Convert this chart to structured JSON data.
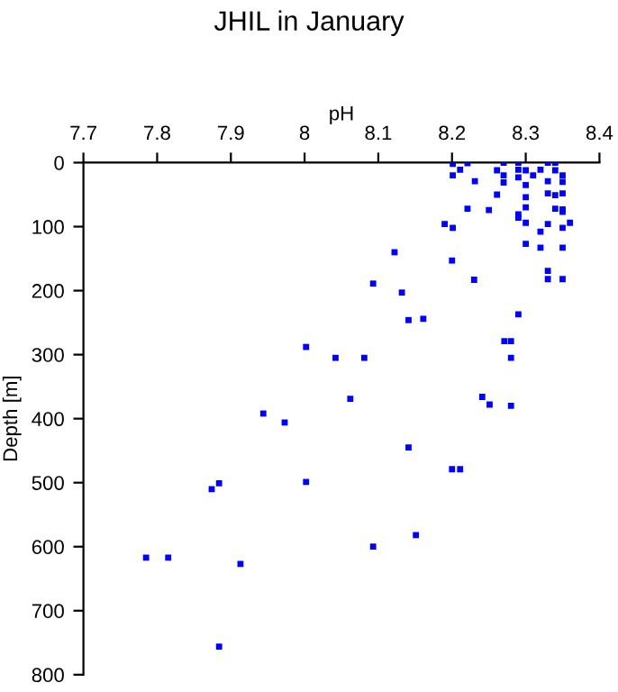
{
  "chart_data": {
    "type": "scatter",
    "title": "JHIL in January",
    "xlabel": "pH",
    "ylabel": "Depth [m]",
    "xlim": [
      7.7,
      8.4
    ],
    "xticks": [
      7.7,
      7.8,
      7.9,
      8,
      8.1,
      8.2,
      8.3,
      8.4
    ],
    "ylim": [
      800,
      0
    ],
    "yticks": [
      0,
      100,
      200,
      300,
      400,
      500,
      600,
      700,
      800
    ],
    "grid": false,
    "marker": "square",
    "series": [
      {
        "color": "#0000ff",
        "x": [
          8.201,
          8.221,
          8.27,
          8.29,
          8.33,
          8.34,
          8.211,
          8.261,
          8.29,
          8.3,
          8.32,
          8.34,
          8.201,
          8.27,
          8.29,
          8.31,
          8.35,
          8.231,
          8.27,
          8.33,
          8.35,
          8.3,
          8.261,
          8.3,
          8.33,
          8.34,
          8.35,
          8.221,
          8.25,
          8.3,
          8.29,
          8.29,
          8.34,
          8.35,
          8.35,
          8.19,
          8.201,
          8.3,
          8.33,
          8.32,
          8.36,
          8.35,
          8.3,
          8.32,
          8.35,
          8.122,
          8.2,
          8.33,
          8.23,
          8.33,
          8.35,
          8.093,
          8.132,
          8.141,
          8.161,
          8.29,
          8.271,
          8.28,
          8.28,
          8.002,
          8.042,
          8.081,
          8.062,
          8.241,
          8.251,
          8.28,
          7.944,
          7.973,
          8.141,
          7.884,
          7.874,
          8.002,
          8.2,
          8.211,
          8.151,
          8.093,
          7.785,
          7.815,
          7.913,
          7.884
        ],
        "values": [
          2,
          1,
          0,
          0,
          0,
          0,
          11,
          12,
          11,
          12,
          11,
          12,
          20,
          20,
          23,
          20,
          20,
          29,
          31,
          29,
          30,
          35,
          50,
          54,
          48,
          51,
          48,
          72,
          74,
          70,
          81,
          86,
          72,
          73,
          77,
          96,
          102,
          94,
          96,
          108,
          94,
          102,
          127,
          133,
          133,
          140,
          153,
          169,
          183,
          182,
          182,
          189,
          203,
          246,
          244,
          237,
          279,
          279,
          305,
          288,
          305,
          305,
          369,
          366,
          378,
          380,
          392,
          406,
          445,
          501,
          510,
          499,
          479,
          479,
          582,
          600,
          617,
          617,
          627,
          756
        ]
      }
    ]
  }
}
